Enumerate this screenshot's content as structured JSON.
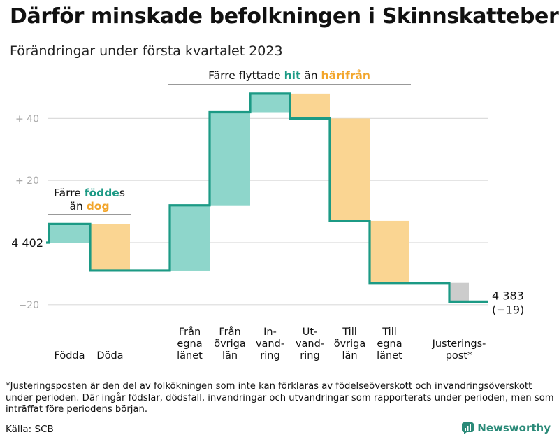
{
  "title": "Därför minskade befolkningen i Skinnskatteberg",
  "subtitle": "Förändringar under första kvartalet 2023",
  "footnote": "*Justeringsposten är den del av folkökningen som inte kan förklaras av födelseöverskott och invandringsöverskott under perioden. Där ingår födslar, dödsfall, invandringar och utvandringar som rapporterats under perioden, men som inträffat före periodens början.",
  "source": "Källa: SCB",
  "brand": "Newsworthy",
  "colors": {
    "increase": "#8ed6cb",
    "decrease": "#fad592",
    "adjustment": "#cccccc",
    "line": "#1c9a85",
    "accent_teal": "#1c9a85",
    "accent_orange": "#f2a52a",
    "grid": "#dcdcdc",
    "tick_text": "#aaaaaa"
  },
  "chart_data": {
    "type": "waterfall",
    "start_value": 4402,
    "start_label": "4 402",
    "end_value": 4383,
    "end_label": "4 383",
    "end_change_label": "(−19)",
    "ylim": [
      -24,
      48
    ],
    "y_ticks": [
      {
        "value": 40,
        "label": "+ 40"
      },
      {
        "value": 20,
        "label": "+ 20"
      },
      {
        "value": -20,
        "label": "−20"
      }
    ],
    "steps": [
      {
        "label_lines": [
          "Födda"
        ],
        "change": 6,
        "kind": "increase"
      },
      {
        "label_lines": [
          "Döda"
        ],
        "change": -15,
        "kind": "decrease"
      },
      {
        "label_lines": [
          "Från",
          "egna",
          "länet"
        ],
        "change": 21,
        "kind": "increase"
      },
      {
        "label_lines": [
          "Från",
          "övriga",
          "län"
        ],
        "change": 30,
        "kind": "increase"
      },
      {
        "label_lines": [
          "In-",
          "vand-",
          "ring"
        ],
        "change": 6,
        "kind": "increase"
      },
      {
        "label_lines": [
          "Ut-",
          "vand-",
          "ring"
        ],
        "change": -8,
        "kind": "decrease"
      },
      {
        "label_lines": [
          "Till",
          "övriga",
          "län"
        ],
        "change": -33,
        "kind": "decrease"
      },
      {
        "label_lines": [
          "Till",
          "egna",
          "länet"
        ],
        "change": -20,
        "kind": "decrease"
      },
      {
        "label_lines": [
          "Justerings-",
          "post*"
        ],
        "change": -6,
        "kind": "adjustment"
      }
    ],
    "annotations": [
      {
        "lines": [
          [
            "Färre ",
            "födde",
            "s"
          ],
          [
            "än ",
            "dog",
            ""
          ]
        ],
        "text": "Färre föddes än dog"
      },
      {
        "lines": [
          [
            "Färre flyttade ",
            "hit",
            " än ",
            "härifrån"
          ]
        ],
        "text": "Färre flyttade hit än härifrån"
      }
    ]
  }
}
